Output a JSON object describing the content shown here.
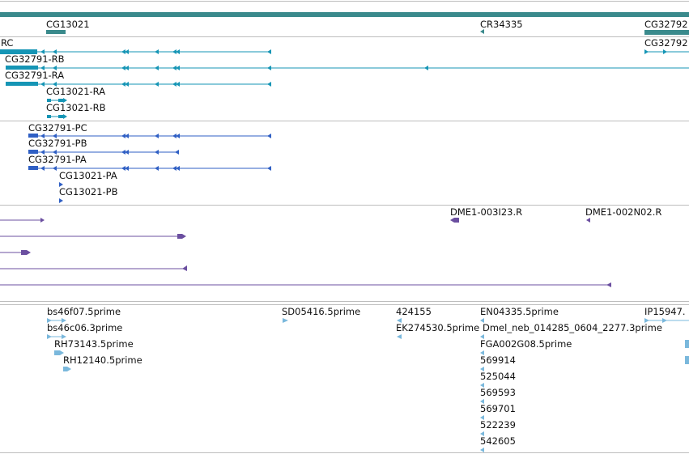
{
  "colors": {
    "gene": "#3a8a8c",
    "transcript": "#1595b5",
    "protein": "#2f5fc4",
    "clone": "#6b4fa0",
    "est": "#7ab8dc",
    "separator": "#bdbdbd"
  },
  "tracks": {
    "genes": {
      "labels": [
        {
          "text": "CG13021"
        },
        {
          "text": "CR34335"
        },
        {
          "text": "CG32792"
        }
      ]
    },
    "transcripts": {
      "labels": [
        {
          "text": "RC"
        },
        {
          "text": "CG32792"
        },
        {
          "text": "CG32791-RB"
        },
        {
          "text": "CG32791-RA"
        },
        {
          "text": "CG13021-RA"
        },
        {
          "text": "CG13021-RB"
        }
      ]
    },
    "proteins": {
      "labels": [
        {
          "text": "CG32791-PC"
        },
        {
          "text": "CG32791-PB"
        },
        {
          "text": "CG32791-PA"
        },
        {
          "text": "CG13021-PA"
        },
        {
          "text": "CG13021-PB"
        }
      ]
    },
    "clones": {
      "labels": [
        {
          "text": "DME1-003I23.R"
        },
        {
          "text": "DME1-002N02.R"
        }
      ]
    },
    "ests": {
      "labels": [
        {
          "text": "bs46f07.5prime"
        },
        {
          "text": "bs46c06.3prime"
        },
        {
          "text": "RH73143.5prime"
        },
        {
          "text": "RH12140.5prime"
        },
        {
          "text": "SD05416.5prime"
        },
        {
          "text": "424155"
        },
        {
          "text": "EK274530.5prime"
        },
        {
          "text": "EN04335.5prime"
        },
        {
          "text": "Dmel_neb_014285_0604_2277.3prime"
        },
        {
          "text": "FGA002G08.5prime"
        },
        {
          "text": "569914"
        },
        {
          "text": "525044"
        },
        {
          "text": "569593"
        },
        {
          "text": "569701"
        },
        {
          "text": "522239"
        },
        {
          "text": "542605"
        },
        {
          "text": "IP15947."
        }
      ]
    }
  }
}
